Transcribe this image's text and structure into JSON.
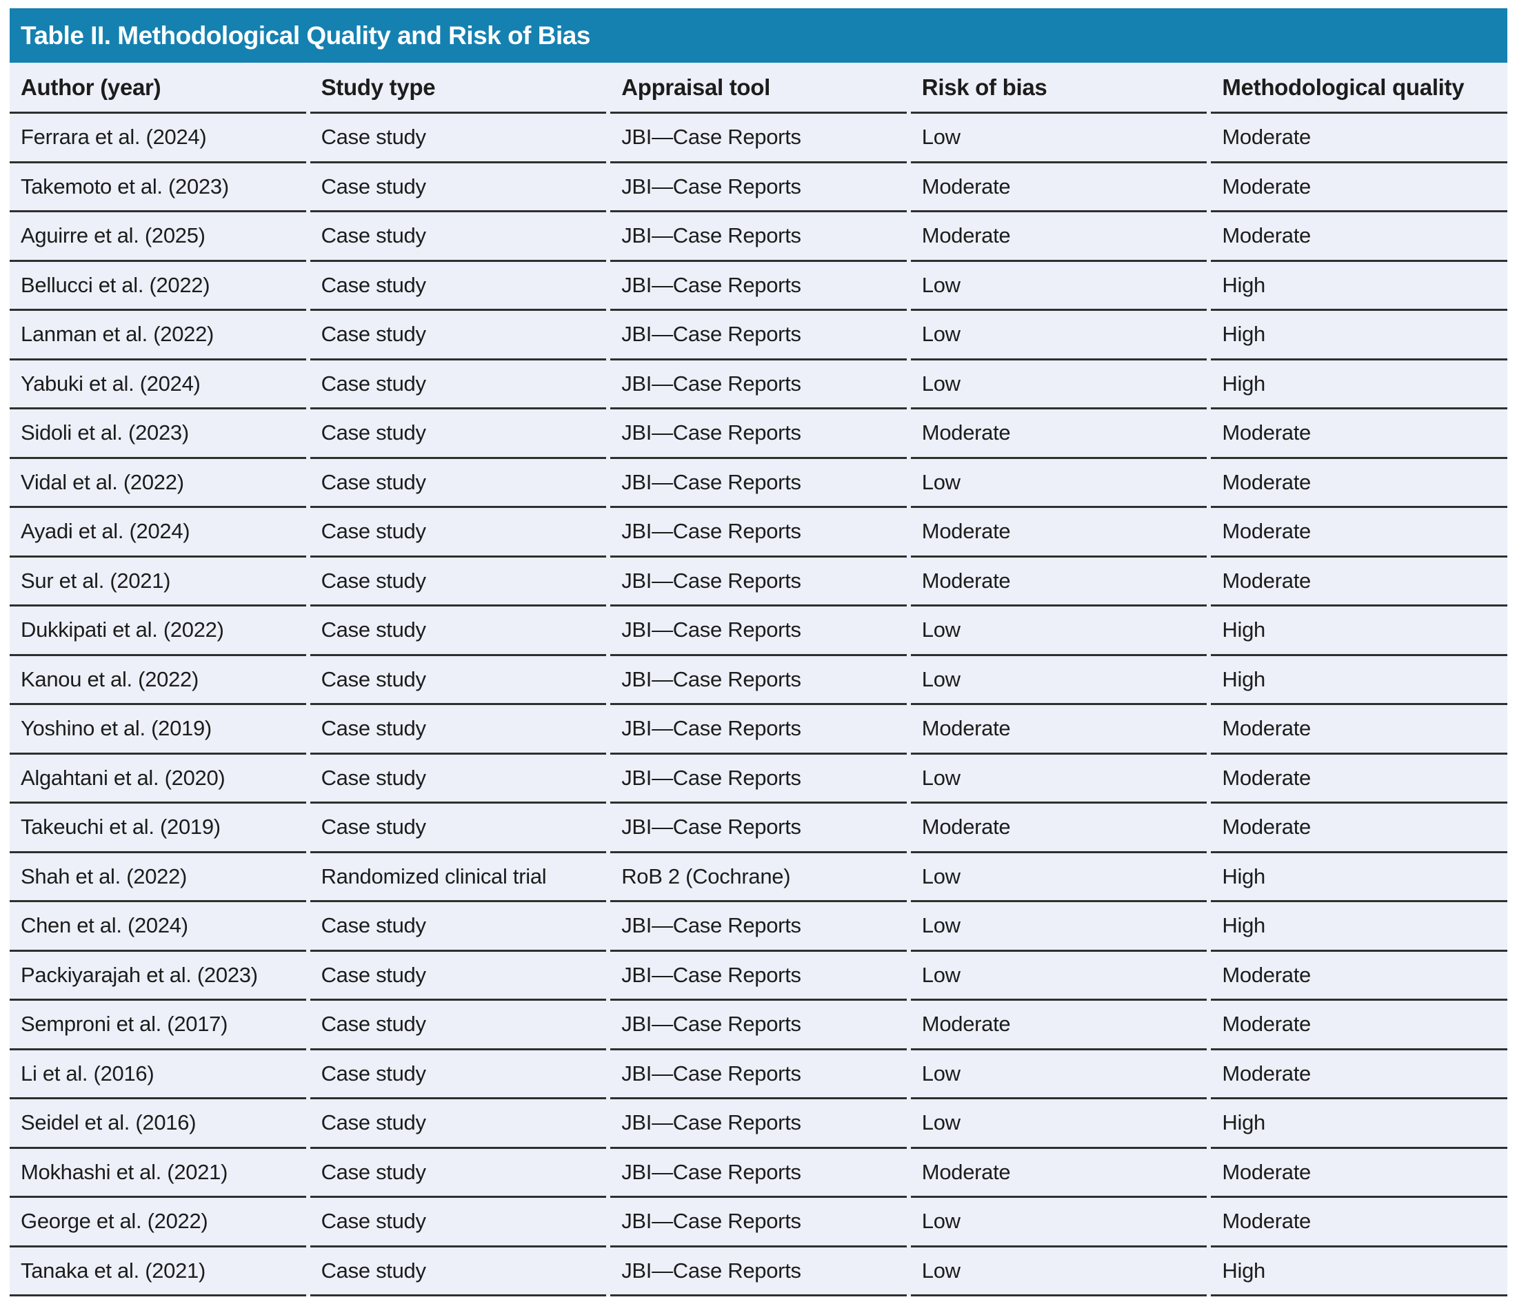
{
  "colors": {
    "accent": "#1581b1",
    "row_background": "#edf0f8",
    "separator_line": "#2f2f2f",
    "text": "#1c1c1c"
  },
  "table": {
    "title": "Table II. Methodological Quality and Risk of Bias",
    "columns": [
      "Author (year)",
      "Study type",
      "Appraisal tool",
      "Risk of bias",
      "Methodological quality"
    ],
    "rows": [
      [
        "Ferrara et al. (2024)",
        "Case study",
        "JBI—Case Reports",
        "Low",
        "Moderate"
      ],
      [
        "Takemoto et al. (2023)",
        "Case study",
        "JBI—Case Reports",
        "Moderate",
        "Moderate"
      ],
      [
        "Aguirre et al. (2025)",
        "Case study",
        "JBI—Case Reports",
        "Moderate",
        "Moderate"
      ],
      [
        "Bellucci et al. (2022)",
        "Case study",
        "JBI—Case Reports",
        "Low",
        "High"
      ],
      [
        "Lanman et al. (2022)",
        "Case study",
        "JBI—Case Reports",
        "Low",
        "High"
      ],
      [
        "Yabuki et al. (2024)",
        "Case study",
        "JBI—Case Reports",
        "Low",
        "High"
      ],
      [
        "Sidoli et al. (2023)",
        "Case study",
        "JBI—Case Reports",
        "Moderate",
        "Moderate"
      ],
      [
        "Vidal et al. (2022)",
        "Case study",
        "JBI—Case Reports",
        "Low",
        "Moderate"
      ],
      [
        "Ayadi et al. (2024)",
        "Case study",
        "JBI—Case Reports",
        "Moderate",
        "Moderate"
      ],
      [
        "Sur et al. (2021)",
        "Case study",
        "JBI—Case Reports",
        "Moderate",
        "Moderate"
      ],
      [
        "Dukkipati et al. (2022)",
        "Case study",
        "JBI—Case Reports",
        "Low",
        "High"
      ],
      [
        "Kanou et al. (2022)",
        "Case study",
        "JBI—Case Reports",
        "Low",
        "High"
      ],
      [
        "Yoshino et al. (2019)",
        "Case study",
        "JBI—Case Reports",
        "Moderate",
        "Moderate"
      ],
      [
        "Algahtani et al. (2020)",
        "Case study",
        "JBI—Case Reports",
        "Low",
        "Moderate"
      ],
      [
        "Takeuchi et al. (2019)",
        "Case study",
        "JBI—Case Reports",
        "Moderate",
        "Moderate"
      ],
      [
        "Shah et al. (2022)",
        "Randomized clinical trial",
        "RoB 2 (Cochrane)",
        "Low",
        "High"
      ],
      [
        "Chen et al. (2024)",
        "Case study",
        "JBI—Case Reports",
        "Low",
        "High"
      ],
      [
        "Packiyarajah et al. (2023)",
        "Case study",
        "JBI—Case Reports",
        "Low",
        "Moderate"
      ],
      [
        "Semproni et al. (2017)",
        "Case study",
        "JBI—Case Reports",
        "Moderate",
        "Moderate"
      ],
      [
        "Li et al. (2016)",
        "Case study",
        "JBI—Case Reports",
        "Low",
        "Moderate"
      ],
      [
        "Seidel et al. (2016)",
        "Case study",
        "JBI—Case Reports",
        "Low",
        "High"
      ],
      [
        "Mokhashi et al. (2021)",
        "Case study",
        "JBI—Case Reports",
        "Moderate",
        "Moderate"
      ],
      [
        "George et al. (2022)",
        "Case study",
        "JBI—Case Reports",
        "Low",
        "Moderate"
      ],
      [
        "Tanaka et al. (2021)",
        "Case study",
        "JBI—Case Reports",
        "Low",
        "High"
      ]
    ]
  }
}
